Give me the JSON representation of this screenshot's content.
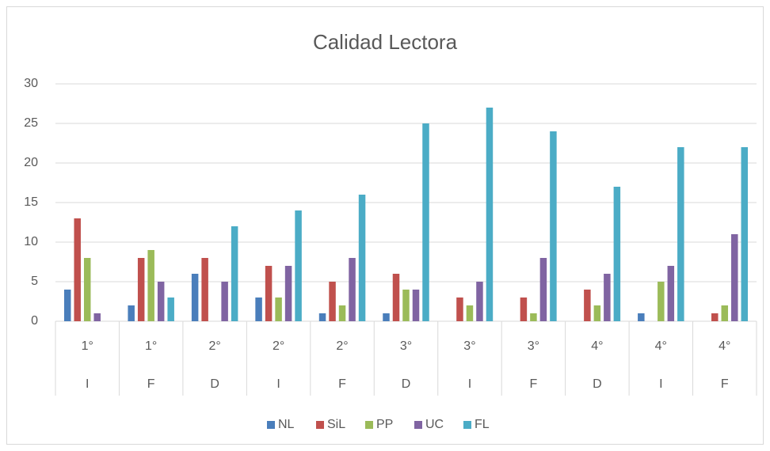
{
  "chart_data": {
    "type": "bar",
    "title": "Calidad Lectora",
    "categories": [
      "I",
      "F",
      "D",
      "I",
      "F",
      "D",
      "I",
      "F",
      "D",
      "I",
      "F"
    ],
    "category_groups": [
      "1°",
      "1°",
      "2°",
      "2°",
      "2°",
      "3°",
      "3°",
      "3°",
      "4°",
      "4°",
      "4°"
    ],
    "series": [
      {
        "name": "NL",
        "color": "#4a7ebb",
        "values": [
          4,
          2,
          6,
          3,
          1,
          1,
          0,
          0,
          0,
          1,
          0
        ]
      },
      {
        "name": "SiL",
        "color": "#c0504d",
        "values": [
          13,
          8,
          8,
          7,
          5,
          6,
          3,
          3,
          4,
          0,
          1
        ]
      },
      {
        "name": "PP",
        "color": "#9bbb59",
        "values": [
          8,
          9,
          0,
          3,
          2,
          4,
          2,
          1,
          2,
          5,
          2
        ]
      },
      {
        "name": "UC",
        "color": "#8064a2",
        "values": [
          1,
          5,
          5,
          7,
          8,
          4,
          5,
          8,
          6,
          7,
          11
        ]
      },
      {
        "name": "FL",
        "color": "#4bacc6",
        "values": [
          0,
          3,
          12,
          14,
          16,
          25,
          27,
          24,
          17,
          22,
          22
        ]
      }
    ],
    "ylim": [
      0,
      30
    ],
    "yticks": [
      0,
      5,
      10,
      15,
      20,
      25,
      30
    ],
    "grid": true,
    "legend": "bottom"
  }
}
